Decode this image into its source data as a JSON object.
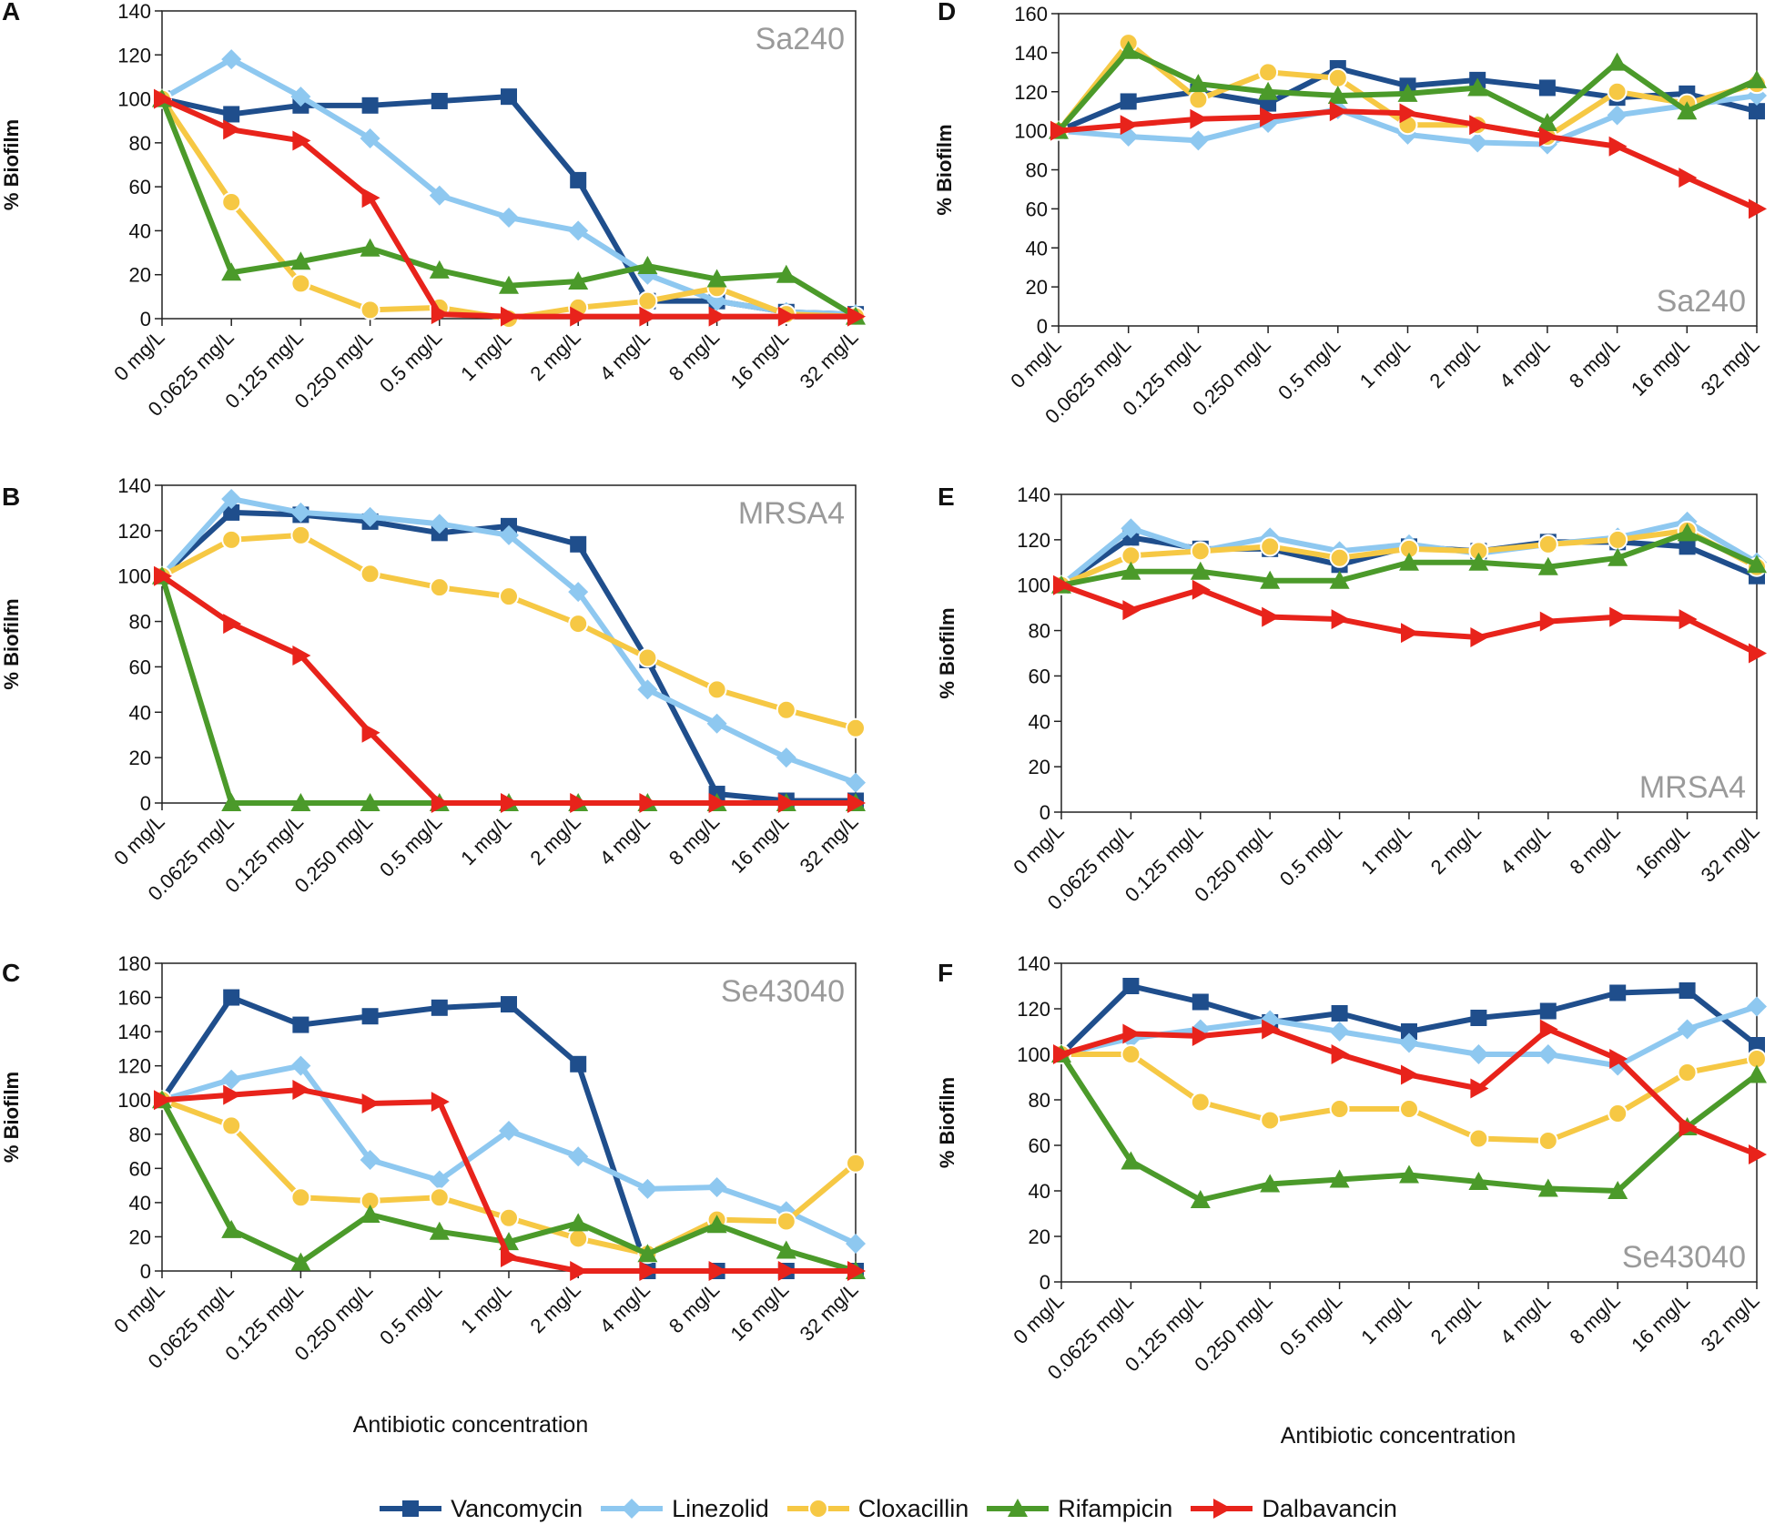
{
  "chart_data": [
    {
      "panel_label": "A",
      "annotation": "Sa240",
      "annotation_position": "top-right",
      "type": "line",
      "ylabel": "% Biofilm",
      "xlabel": "",
      "ylim": [
        0,
        140
      ],
      "ystep": 20,
      "categories": [
        "0 mg/L",
        "0.0625 mg/L",
        "0.125 mg/L",
        "0.250 mg/L",
        "0.5 mg/L",
        "1 mg/L",
        "2 mg/L",
        "4 mg/L",
        "8 mg/L",
        "16 mg/L",
        "32 mg/L"
      ],
      "series": [
        {
          "name": "Vancomycin",
          "values": [
            100,
            93,
            97,
            97,
            99,
            101,
            63,
            8,
            8,
            3,
            2
          ]
        },
        {
          "name": "Linezolid",
          "values": [
            100,
            118,
            101,
            82,
            56,
            46,
            40,
            20,
            8,
            3,
            2
          ]
        },
        {
          "name": "Cloxacillin",
          "values": [
            100,
            53,
            16,
            4,
            5,
            0,
            5,
            8,
            14,
            2,
            1
          ]
        },
        {
          "name": "Rifampicin",
          "values": [
            100,
            21,
            26,
            32,
            22,
            15,
            17,
            24,
            18,
            20,
            1
          ]
        },
        {
          "name": "Dalbavancin",
          "values": [
            100,
            86,
            81,
            55,
            2,
            1,
            1,
            1,
            1,
            1,
            1
          ]
        }
      ]
    },
    {
      "panel_label": "B",
      "annotation": "MRSA4",
      "annotation_position": "top-right",
      "type": "line",
      "ylabel": "% Biofilm",
      "xlabel": "",
      "ylim": [
        0,
        140
      ],
      "ystep": 20,
      "categories": [
        "0 mg/L",
        "0.0625 mg/L",
        "0.125 mg/L",
        "0.250 mg/L",
        "0.5 mg/L",
        "1 mg/L",
        "2 mg/L",
        "4 mg/L",
        "8 mg/L",
        "16 mg/L",
        "32 mg/L"
      ],
      "series": [
        {
          "name": "Vancomycin",
          "values": [
            100,
            128,
            127,
            124,
            119,
            122,
            114,
            63,
            4,
            1,
            1
          ]
        },
        {
          "name": "Linezolid",
          "values": [
            100,
            134,
            128,
            126,
            123,
            118,
            93,
            50,
            35,
            20,
            9
          ]
        },
        {
          "name": "Cloxacillin",
          "values": [
            100,
            116,
            118,
            101,
            95,
            91,
            79,
            64,
            50,
            41,
            33
          ]
        },
        {
          "name": "Rifampicin",
          "values": [
            100,
            0,
            0,
            0,
            0,
            0,
            0,
            0,
            0,
            0,
            0
          ]
        },
        {
          "name": "Dalbavancin",
          "values": [
            100,
            79,
            65,
            31,
            0,
            0,
            0,
            0,
            0,
            0,
            0
          ]
        }
      ]
    },
    {
      "panel_label": "C",
      "annotation": "Se43040",
      "annotation_position": "top-right",
      "type": "line",
      "ylabel": "% Biofilm",
      "xlabel": "Antibiotic concentration",
      "ylim": [
        0,
        180
      ],
      "ystep": 20,
      "categories": [
        "0 mg/L",
        "0.0625 mg/L",
        "0.125 mg/L",
        "0.250 mg/L",
        "0.5 mg/L",
        "1 mg/L",
        "2 mg/L",
        "4 mg/L",
        "8 mg/L",
        "16 mg/L",
        "32 mg/L"
      ],
      "series": [
        {
          "name": "Vancomycin",
          "values": [
            100,
            160,
            144,
            149,
            154,
            156,
            121,
            0,
            0,
            0,
            0
          ]
        },
        {
          "name": "Linezolid",
          "values": [
            100,
            112,
            120,
            65,
            53,
            82,
            67,
            48,
            49,
            35,
            16
          ]
        },
        {
          "name": "Cloxacillin",
          "values": [
            100,
            85,
            43,
            41,
            43,
            31,
            19,
            10,
            30,
            29,
            63
          ]
        },
        {
          "name": "Rifampicin",
          "values": [
            100,
            24,
            5,
            33,
            23,
            17,
            28,
            10,
            27,
            12,
            0
          ]
        },
        {
          "name": "Dalbavancin",
          "values": [
            100,
            103,
            106,
            98,
            99,
            8,
            0,
            0,
            0,
            0,
            0
          ]
        }
      ]
    },
    {
      "panel_label": "D",
      "annotation": "Sa240",
      "annotation_position": "bottom-right",
      "type": "line",
      "ylabel": "% Biofilm",
      "xlabel": "",
      "ylim": [
        0,
        160
      ],
      "ystep": 20,
      "categories": [
        "0 mg/L",
        "0.0625 mg/L",
        "0.125 mg/L",
        "0.250 mg/L",
        "0.5 mg/L",
        "1 mg/L",
        "2 mg/L",
        "4 mg/L",
        "8 mg/L",
        "16 mg/L",
        "32 mg/L"
      ],
      "series": [
        {
          "name": "Vancomycin",
          "values": [
            100,
            115,
            120,
            114,
            132,
            123,
            126,
            122,
            117,
            119,
            110
          ]
        },
        {
          "name": "Linezolid",
          "values": [
            100,
            97,
            95,
            104,
            111,
            98,
            94,
            93,
            108,
            113,
            118
          ]
        },
        {
          "name": "Cloxacillin",
          "values": [
            100,
            145,
            116,
            130,
            127,
            103,
            103,
            97,
            120,
            114,
            124
          ]
        },
        {
          "name": "Rifampicin",
          "values": [
            100,
            141,
            124,
            120,
            118,
            119,
            122,
            104,
            135,
            110,
            126
          ]
        },
        {
          "name": "Dalbavancin",
          "values": [
            100,
            103,
            106,
            107,
            110,
            109,
            103,
            97,
            92,
            76,
            60
          ]
        }
      ]
    },
    {
      "panel_label": "E",
      "annotation": "MRSA4",
      "annotation_position": "bottom-right",
      "type": "line",
      "ylabel": "% Biofilm",
      "xlabel": "",
      "ylim": [
        0,
        140
      ],
      "ystep": 20,
      "categories": [
        "0 mg/L",
        "0.0625 mg/L",
        "0.125 mg/L",
        "0.250 mg/L",
        "0.5 mg/L",
        "1 mg/L",
        "2 mg/L",
        "4 mg/L",
        "8 mg/L",
        "16mg/L",
        "32 mg/L"
      ],
      "series": [
        {
          "name": "Vancomycin",
          "values": [
            100,
            121,
            116,
            116,
            109,
            117,
            115,
            119,
            119,
            117,
            104
          ]
        },
        {
          "name": "Linezolid",
          "values": [
            100,
            125,
            115,
            121,
            115,
            118,
            114,
            118,
            121,
            128,
            110
          ]
        },
        {
          "name": "Cloxacillin",
          "values": [
            100,
            113,
            115,
            117,
            112,
            116,
            115,
            118,
            120,
            124,
            108
          ]
        },
        {
          "name": "Rifampicin",
          "values": [
            100,
            106,
            106,
            102,
            102,
            110,
            110,
            108,
            112,
            123,
            109
          ]
        },
        {
          "name": "Dalbavancin",
          "values": [
            100,
            89,
            98,
            86,
            85,
            79,
            77,
            84,
            86,
            85,
            70
          ]
        }
      ]
    },
    {
      "panel_label": "F",
      "annotation": "Se43040",
      "annotation_position": "bottom-right",
      "type": "line",
      "ylabel": "% Biofilm",
      "xlabel": "Antibiotic concentration",
      "ylim": [
        0,
        140
      ],
      "ystep": 20,
      "categories": [
        "0 mg/L",
        "0.0625 mg/L",
        "0.125 mg/L",
        "0.250 mg/L",
        "0.5 mg/L",
        "1 mg/L",
        "2 mg/L",
        "4 mg/L",
        "8 mg/L",
        "16 mg/L",
        "32 mg/L"
      ],
      "series": [
        {
          "name": "Vancomycin",
          "values": [
            100,
            130,
            123,
            114,
            118,
            110,
            116,
            119,
            127,
            128,
            104
          ]
        },
        {
          "name": "Linezolid",
          "values": [
            100,
            107,
            111,
            115,
            110,
            105,
            100,
            100,
            95,
            111,
            121
          ]
        },
        {
          "name": "Cloxacillin",
          "values": [
            100,
            100,
            79,
            71,
            76,
            76,
            63,
            62,
            74,
            92,
            98
          ]
        },
        {
          "name": "Rifampicin",
          "values": [
            100,
            53,
            36,
            43,
            45,
            47,
            44,
            41,
            40,
            68,
            91
          ]
        },
        {
          "name": "Dalbavancin",
          "values": [
            100,
            109,
            108,
            111,
            100,
            91,
            85,
            111,
            98,
            68,
            56
          ]
        }
      ]
    }
  ],
  "legend": [
    {
      "name": "Vancomycin",
      "color": "#1f4e8c",
      "marker": "square"
    },
    {
      "name": "Linezolid",
      "color": "#8ec8f0",
      "marker": "diamond"
    },
    {
      "name": "Cloxacillin",
      "color": "#f6c844",
      "marker": "circle"
    },
    {
      "name": "Rifampicin",
      "color": "#4b9a2a",
      "marker": "triangle"
    },
    {
      "name": "Dalbavancin",
      "color": "#e8231b",
      "marker": "arrow-right"
    }
  ]
}
